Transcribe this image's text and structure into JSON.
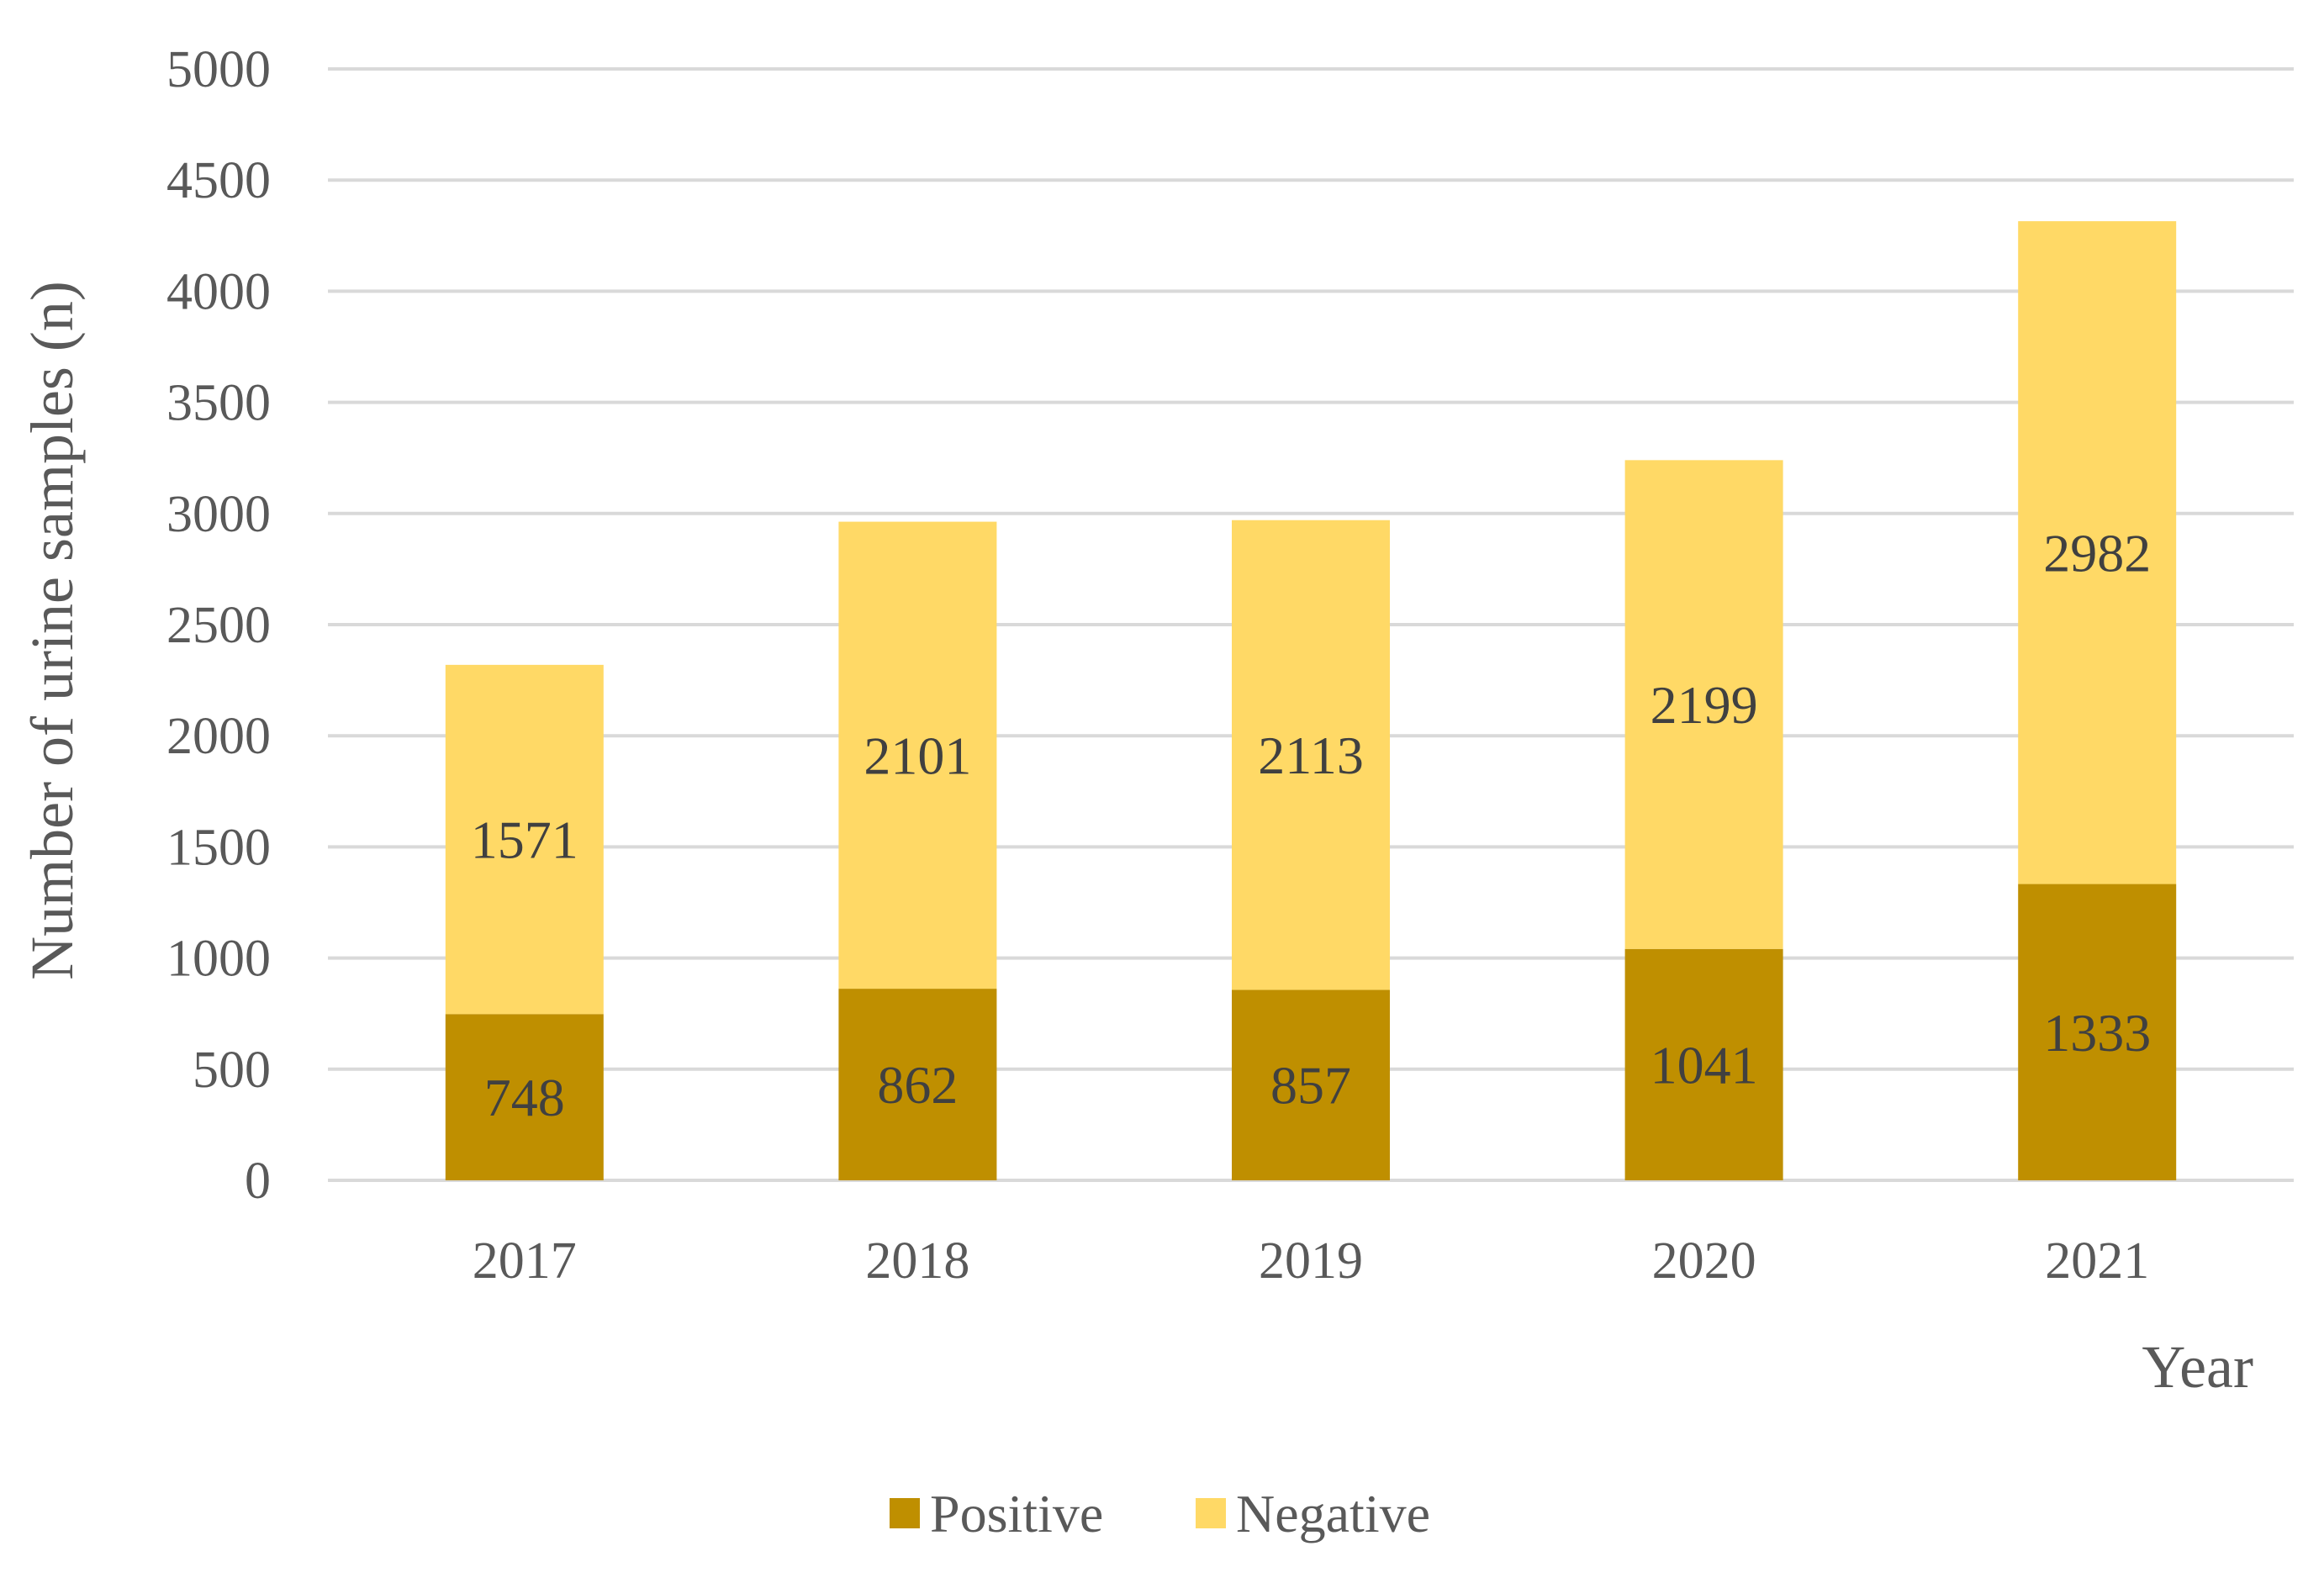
{
  "chart_data": {
    "type": "bar",
    "stacked": true,
    "title": "",
    "xlabel": "Year",
    "ylabel": "Number of urine samples (n)",
    "ylim": [
      0,
      5000
    ],
    "yticks": [
      0,
      500,
      1000,
      1500,
      2000,
      2500,
      3000,
      3500,
      4000,
      4500,
      5000
    ],
    "grid": true,
    "legend_position": "bottom",
    "categories": [
      "2017",
      "2018",
      "2019",
      "2020",
      "2021"
    ],
    "series": [
      {
        "name": "Positive",
        "color": "#bf8f00",
        "values": [
          748,
          862,
          857,
          1041,
          1333
        ]
      },
      {
        "name": "Negative",
        "color": "#ffd966",
        "values": [
          1571,
          2101,
          2113,
          2199,
          2982
        ]
      }
    ]
  }
}
